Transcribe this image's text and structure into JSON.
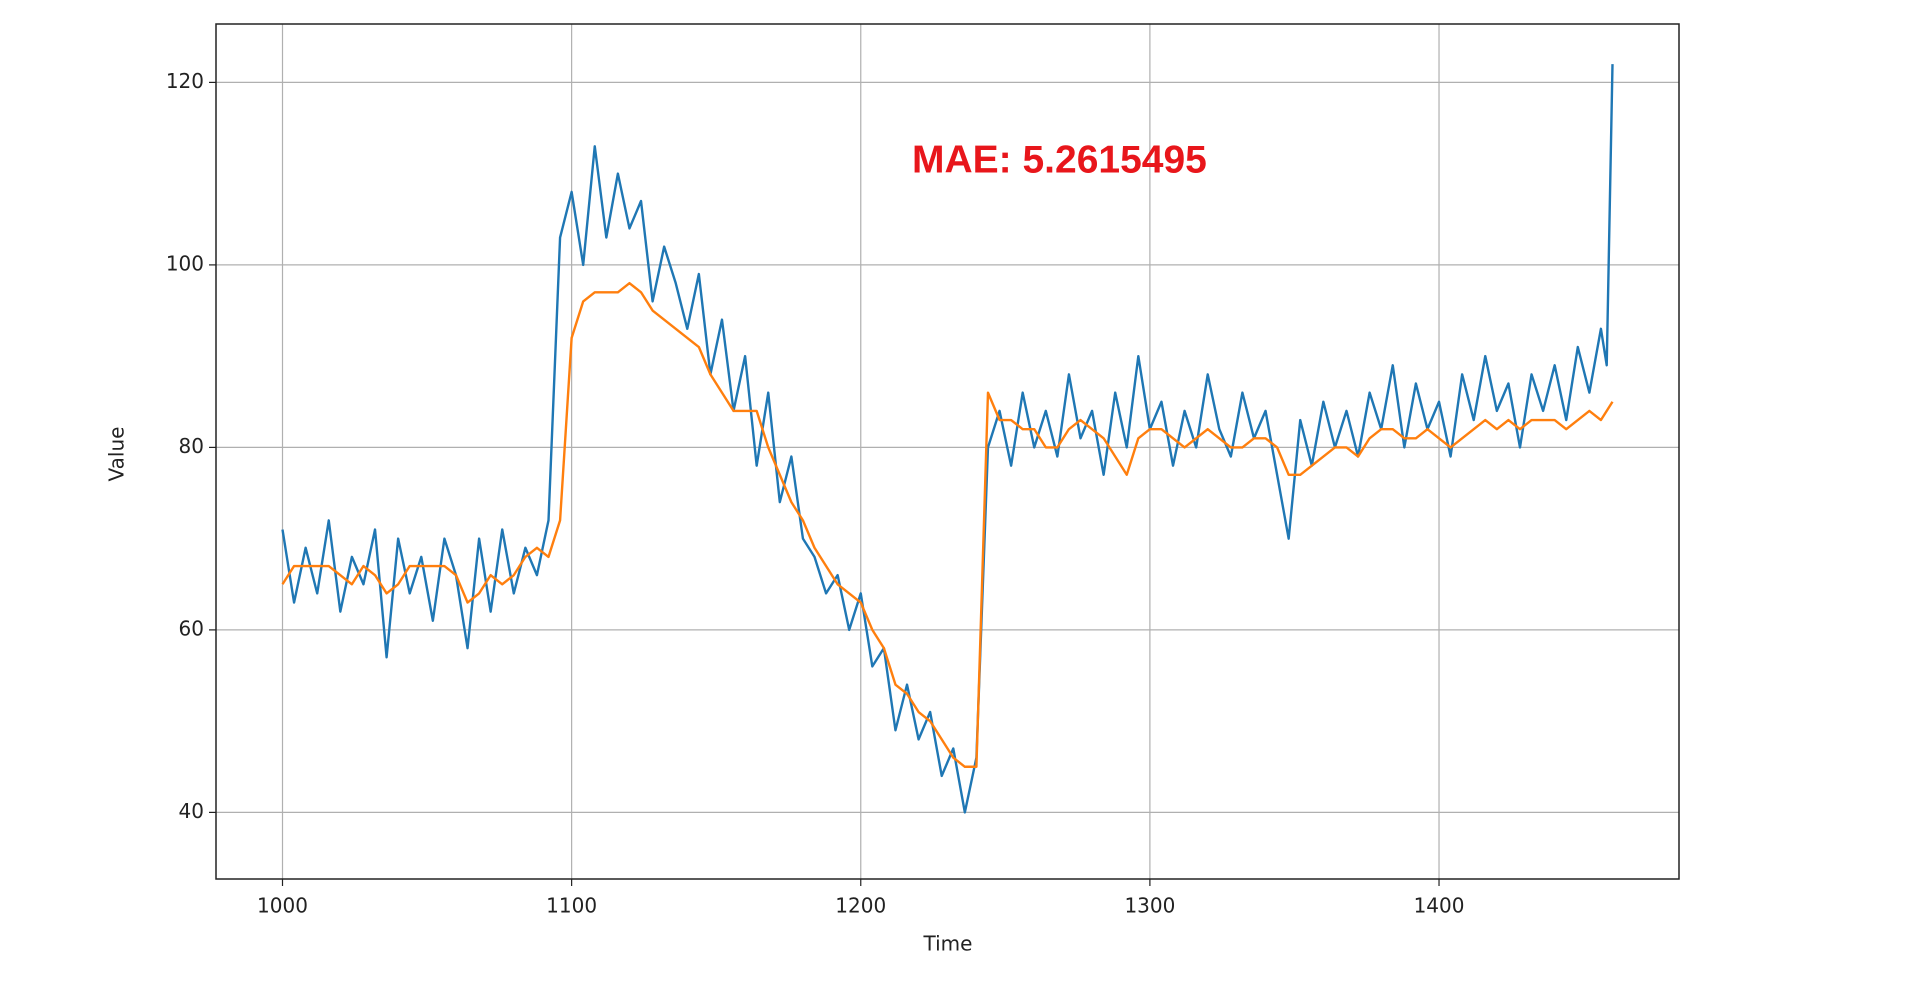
{
  "chart_data": {
    "type": "line",
    "annotation": "MAE: 5.2615495",
    "xlabel": "Time",
    "ylabel": "Value",
    "xlim": [
      977,
      1483
    ],
    "ylim": [
      32.7,
      126.4
    ],
    "xticks": [
      1000,
      1100,
      1200,
      1300,
      1400
    ],
    "yticks": [
      40,
      60,
      80,
      100,
      120
    ],
    "grid": true,
    "x": [
      1000,
      1004,
      1008,
      1012,
      1016,
      1020,
      1024,
      1028,
      1032,
      1036,
      1040,
      1044,
      1048,
      1052,
      1056,
      1060,
      1064,
      1068,
      1072,
      1076,
      1080,
      1084,
      1088,
      1092,
      1096,
      1100,
      1104,
      1108,
      1112,
      1116,
      1120,
      1124,
      1128,
      1132,
      1136,
      1140,
      1144,
      1148,
      1152,
      1156,
      1160,
      1164,
      1168,
      1172,
      1176,
      1180,
      1184,
      1188,
      1192,
      1196,
      1200,
      1204,
      1208,
      1212,
      1216,
      1220,
      1224,
      1228,
      1232,
      1236,
      1240,
      1244,
      1248,
      1252,
      1256,
      1260,
      1264,
      1268,
      1272,
      1276,
      1280,
      1284,
      1288,
      1292,
      1296,
      1300,
      1304,
      1308,
      1312,
      1316,
      1320,
      1324,
      1328,
      1332,
      1336,
      1340,
      1344,
      1348,
      1352,
      1356,
      1360,
      1364,
      1368,
      1372,
      1376,
      1380,
      1384,
      1388,
      1392,
      1396,
      1400,
      1404,
      1408,
      1412,
      1416,
      1420,
      1424,
      1428,
      1432,
      1436,
      1440,
      1444,
      1448,
      1452,
      1456,
      1458,
      1460
    ],
    "series": [
      {
        "color": "#1f77b4",
        "values": [
          71,
          63,
          69,
          64,
          72,
          62,
          68,
          65,
          71,
          57,
          70,
          64,
          68,
          61,
          70,
          66,
          58,
          70,
          62,
          71,
          64,
          69,
          66,
          72,
          103,
          108,
          100,
          113,
          103,
          110,
          104,
          107,
          96,
          102,
          98,
          93,
          99,
          88,
          94,
          84,
          90,
          78,
          86,
          74,
          79,
          70,
          68,
          64,
          66,
          60,
          64,
          56,
          58,
          49,
          54,
          48,
          51,
          44,
          47,
          40,
          46,
          80,
          84,
          78,
          86,
          80,
          84,
          79,
          88,
          81,
          84,
          77,
          86,
          80,
          90,
          82,
          85,
          78,
          84,
          80,
          88,
          82,
          79,
          86,
          81,
          84,
          77,
          70,
          83,
          78,
          85,
          80,
          84,
          79,
          86,
          82,
          89,
          80,
          87,
          82,
          85,
          79,
          88,
          83,
          90,
          84,
          87,
          80,
          88,
          84,
          89,
          83,
          91,
          86,
          93,
          89,
          122
        ]
      },
      {
        "color": "#ff7f0e",
        "values": [
          65,
          67,
          67,
          67,
          67,
          66,
          65,
          67,
          66,
          64,
          65,
          67,
          67,
          67,
          67,
          66,
          63,
          64,
          66,
          65,
          66,
          68,
          69,
          68,
          72,
          92,
          96,
          97,
          97,
          97,
          98,
          97,
          95,
          94,
          93,
          92,
          91,
          88,
          86,
          84,
          84,
          84,
          80,
          77,
          74,
          72,
          69,
          67,
          65,
          64,
          63,
          60,
          58,
          54,
          53,
          51,
          50,
          48,
          46,
          45,
          45,
          86,
          83,
          83,
          82,
          82,
          80,
          80,
          82,
          83,
          82,
          81,
          79,
          77,
          81,
          82,
          82,
          81,
          80,
          81,
          82,
          81,
          80,
          80,
          81,
          81,
          80,
          77,
          77,
          78,
          79,
          80,
          80,
          79,
          81,
          82,
          82,
          81,
          81,
          82,
          81,
          80,
          81,
          82,
          83,
          82,
          83,
          82,
          83,
          83,
          83,
          82,
          83,
          84,
          83,
          84,
          85
        ]
      }
    ]
  }
}
